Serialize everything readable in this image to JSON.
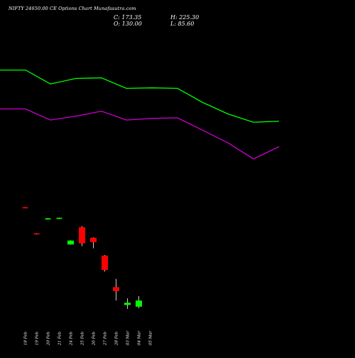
{
  "header": {
    "title": "NIFTY 24650.00  CE Options  Chart Munafasutra.com",
    "close": "C: 173.35",
    "open": "O: 130.00",
    "high": "H: 225.30",
    "low": "L: 85.60"
  },
  "colors": {
    "background": "#000000",
    "up": "#00ff00",
    "down": "#ff0000",
    "band_upper": "#00ff00",
    "band_lower": "#cc00cc",
    "wick": "#ffffff"
  },
  "chart_data": {
    "type": "candlestick",
    "categories": [
      "18 Feb",
      "19 Feb",
      "20 Feb",
      "21 Feb",
      "24 Feb",
      "25 Feb",
      "26 Feb",
      "27 Feb",
      "28 Feb",
      "03 Mar",
      "04 Mar",
      "05 Mar"
    ],
    "candles": [
      {
        "date": "18 Feb",
        "open": 378,
        "close": 377,
        "high": 378.5,
        "low": 376.5,
        "color": "down"
      },
      {
        "date": "19 Feb",
        "open": 331,
        "close": 330,
        "high": 331.5,
        "low": 329.5,
        "color": "down"
      },
      {
        "date": "20 Feb",
        "open": 357,
        "close": 358,
        "high": 358.5,
        "low": 356.5,
        "color": "up"
      },
      {
        "date": "21 Feb",
        "open": 358,
        "close": 359,
        "high": 359.5,
        "low": 357.5,
        "color": "up"
      },
      {
        "date": "24 Feb",
        "open": 311,
        "close": 318,
        "high": 318.5,
        "low": 310.5,
        "color": "up"
      },
      {
        "date": "25 Feb",
        "open": 342,
        "close": 313,
        "high": 344,
        "low": 308,
        "color": "down"
      },
      {
        "date": "26 Feb",
        "open": 323,
        "close": 315,
        "high": 324,
        "low": 304,
        "color": "down"
      },
      {
        "date": "27 Feb",
        "open": 291,
        "close": 265,
        "high": 292,
        "low": 262,
        "color": "down"
      },
      {
        "date": "28 Feb",
        "open": 234,
        "close": 227,
        "high": 249,
        "low": 210,
        "color": "down"
      },
      {
        "date": "03 Mar",
        "open": 202,
        "close": 206,
        "high": 214,
        "low": 195,
        "color": "up"
      },
      {
        "date": "04 Mar",
        "open": 199,
        "close": 210,
        "high": 218,
        "low": 196,
        "color": "up"
      }
    ],
    "band_upper": [
      625,
      625,
      600,
      610,
      611,
      592,
      593,
      592,
      567,
      546,
      531,
      533
    ],
    "band_lower": [
      555,
      555,
      535,
      542,
      551,
      535,
      538,
      539,
      517,
      494,
      465,
      487
    ],
    "ylim": [
      150,
      700
    ]
  }
}
